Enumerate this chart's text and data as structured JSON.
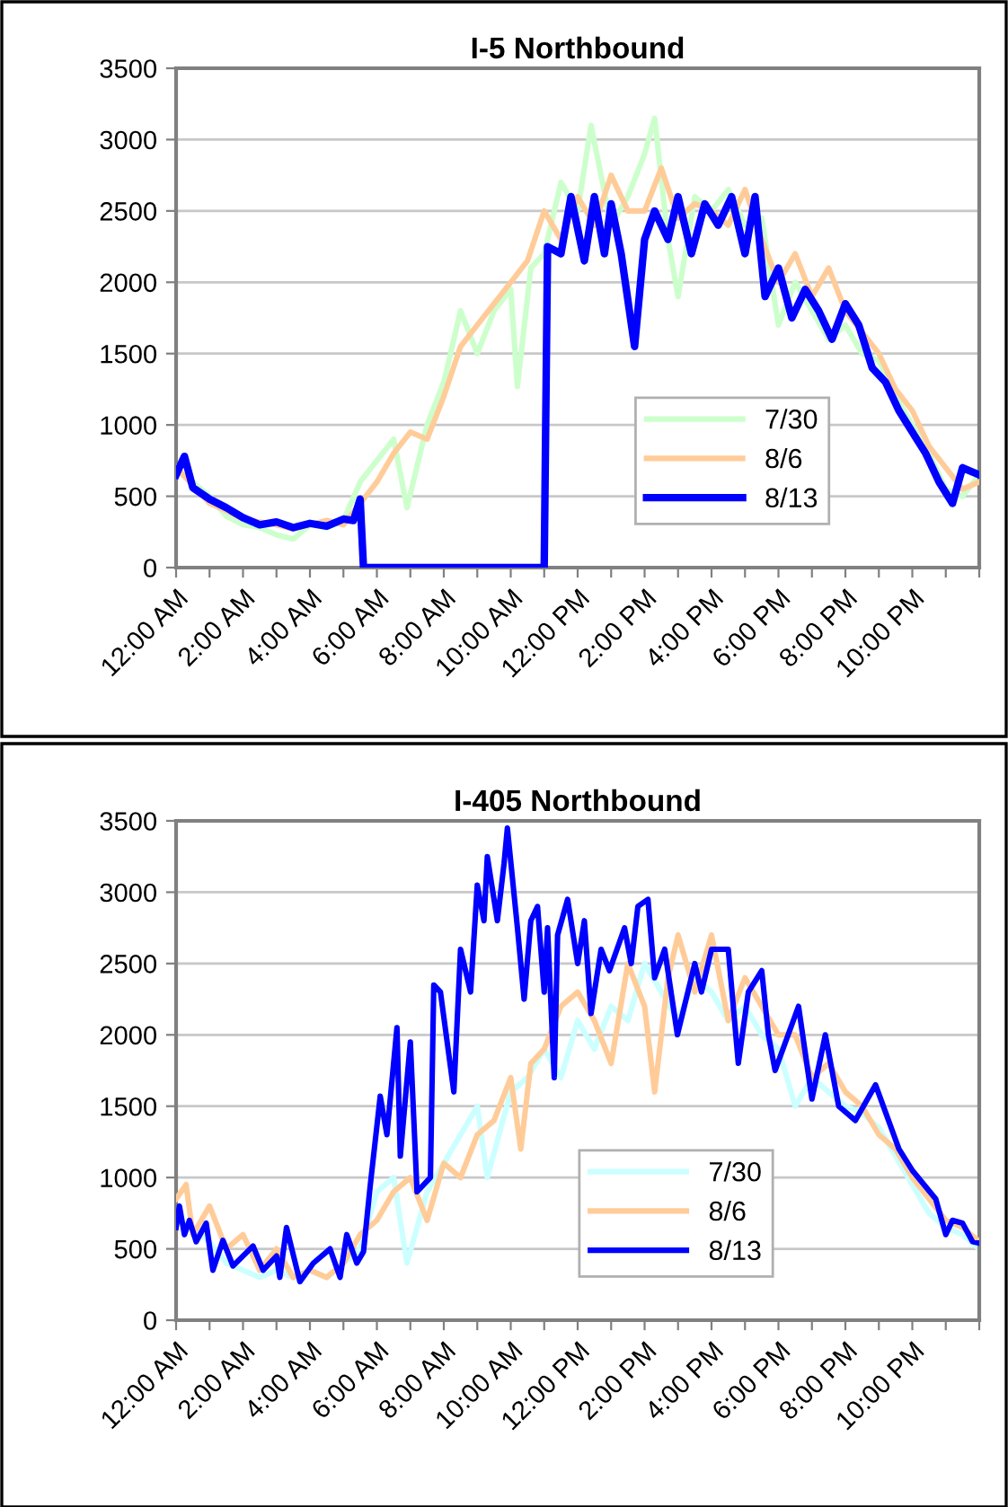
{
  "chart_data": [
    {
      "type": "line",
      "title": "I-5 Northbound",
      "xlim": [
        0,
        24
      ],
      "ylim": [
        0,
        3500
      ],
      "yticks": [
        0,
        500,
        1000,
        1500,
        2000,
        2500,
        3000,
        3500
      ],
      "xticks": [
        {
          "value": 0,
          "label": "12:00 AM"
        },
        {
          "value": 1,
          "label": null
        },
        {
          "value": 2,
          "label": "2:00 AM"
        },
        {
          "value": 3,
          "label": null
        },
        {
          "value": 4,
          "label": "4:00 AM"
        },
        {
          "value": 5,
          "label": null
        },
        {
          "value": 6,
          "label": "6:00 AM"
        },
        {
          "value": 7,
          "label": null
        },
        {
          "value": 8,
          "label": "8:00 AM"
        },
        {
          "value": 9,
          "label": null
        },
        {
          "value": 10,
          "label": "10:00 AM"
        },
        {
          "value": 11,
          "label": null
        },
        {
          "value": 12,
          "label": "12:00 PM"
        },
        {
          "value": 13,
          "label": null
        },
        {
          "value": 14,
          "label": "2:00 PM"
        },
        {
          "value": 15,
          "label": null
        },
        {
          "value": 16,
          "label": "4:00 PM"
        },
        {
          "value": 17,
          "label": null
        },
        {
          "value": 18,
          "label": "6:00 PM"
        },
        {
          "value": 19,
          "label": null
        },
        {
          "value": 20,
          "label": "8:00 PM"
        },
        {
          "value": 21,
          "label": null
        },
        {
          "value": 22,
          "label": "10:00 PM"
        },
        {
          "value": 23,
          "label": null
        },
        {
          "value": 24,
          "label": null
        }
      ],
      "grid": "y",
      "legend": "lower right",
      "marker": "none",
      "line_style": "solid",
      "series": [
        {
          "name": "7/30",
          "color": "#ccffcc",
          "x": [
            0,
            0.5,
            1,
            1.5,
            2,
            2.5,
            3,
            3.5,
            4,
            4.5,
            5,
            5.5,
            6,
            6.5,
            6.9,
            7.5,
            8,
            8.5,
            9,
            9.5,
            10,
            10.2,
            10.6,
            11,
            11.5,
            12,
            12.4,
            13,
            13.5,
            14,
            14.3,
            14.7,
            15,
            15.5,
            16,
            16.5,
            17,
            17.5,
            18,
            18.5,
            19,
            19.5,
            20,
            20.5,
            21,
            21.5,
            22,
            22.5,
            23,
            23.5,
            24
          ],
          "values": [
            680,
            600,
            500,
            360,
            300,
            280,
            230,
            200,
            300,
            280,
            330,
            600,
            750,
            900,
            420,
            1000,
            1300,
            1800,
            1500,
            1800,
            1950,
            1270,
            2100,
            2200,
            2700,
            2500,
            3100,
            2400,
            2600,
            2900,
            3150,
            2300,
            1900,
            2600,
            2500,
            2650,
            2400,
            2450,
            1700,
            2000,
            1800,
            1600,
            1700,
            1500,
            1450,
            1200,
            1000,
            800,
            550,
            500,
            650
          ]
        },
        {
          "name": "8/6",
          "color": "#ffcc99",
          "x": [
            0,
            0.5,
            1,
            1.5,
            2,
            2.5,
            3,
            3.5,
            4,
            4.5,
            5,
            5.5,
            6,
            6.5,
            7,
            7.5,
            8,
            8.5,
            9,
            9.5,
            10,
            10.5,
            11,
            11.5,
            12,
            12.5,
            13,
            13.5,
            14,
            14.5,
            15,
            15.5,
            16,
            16.5,
            17,
            17.5,
            18,
            18.5,
            19,
            19.5,
            20,
            20.5,
            21,
            21.5,
            22,
            22.5,
            23,
            23.5,
            24
          ],
          "values": [
            700,
            580,
            450,
            400,
            340,
            320,
            300,
            270,
            300,
            330,
            300,
            450,
            600,
            800,
            950,
            900,
            1200,
            1550,
            1700,
            1850,
            2000,
            2150,
            2500,
            2300,
            2600,
            2400,
            2750,
            2500,
            2500,
            2800,
            2450,
            2550,
            2500,
            2400,
            2650,
            2300,
            2000,
            2200,
            1900,
            2100,
            1800,
            1650,
            1500,
            1250,
            1100,
            850,
            700,
            550,
            600
          ]
        },
        {
          "name": "8/13",
          "color": "#0000ff",
          "x": [
            0,
            0.25,
            0.5,
            1,
            1.5,
            2,
            2.5,
            3,
            3.5,
            4,
            4.5,
            5,
            5.3,
            5.5,
            5.6,
            7,
            9,
            11,
            11.1,
            11.5,
            11.8,
            12.2,
            12.5,
            12.8,
            13,
            13.3,
            13.7,
            14,
            14.3,
            14.7,
            15,
            15.4,
            15.8,
            16.2,
            16.6,
            17,
            17.3,
            17.6,
            18,
            18.4,
            18.8,
            19.2,
            19.6,
            20,
            20.4,
            20.8,
            21.2,
            21.6,
            22,
            22.4,
            22.8,
            23.2,
            23.5,
            24
          ],
          "values": [
            650,
            780,
            560,
            480,
            420,
            350,
            300,
            320,
            280,
            310,
            290,
            340,
            330,
            480,
            0,
            0,
            0,
            0,
            2250,
            2200,
            2600,
            2150,
            2600,
            2200,
            2550,
            2200,
            1550,
            2300,
            2500,
            2300,
            2600,
            2200,
            2550,
            2400,
            2600,
            2200,
            2600,
            1900,
            2100,
            1750,
            1950,
            1800,
            1600,
            1850,
            1700,
            1400,
            1300,
            1100,
            950,
            800,
            600,
            450,
            700,
            650
          ]
        }
      ]
    },
    {
      "type": "line",
      "title": "I-405 Northbound",
      "xlim": [
        0,
        24
      ],
      "ylim": [
        0,
        3500
      ],
      "yticks": [
        0,
        500,
        1000,
        1500,
        2000,
        2500,
        3000,
        3500
      ],
      "xticks": [
        {
          "value": 0,
          "label": "12:00 AM"
        },
        {
          "value": 1,
          "label": null
        },
        {
          "value": 2,
          "label": "2:00 AM"
        },
        {
          "value": 3,
          "label": null
        },
        {
          "value": 4,
          "label": "4:00 AM"
        },
        {
          "value": 5,
          "label": null
        },
        {
          "value": 6,
          "label": "6:00 AM"
        },
        {
          "value": 7,
          "label": null
        },
        {
          "value": 8,
          "label": "8:00 AM"
        },
        {
          "value": 9,
          "label": null
        },
        {
          "value": 10,
          "label": "10:00 AM"
        },
        {
          "value": 11,
          "label": null
        },
        {
          "value": 12,
          "label": "12:00 PM"
        },
        {
          "value": 13,
          "label": null
        },
        {
          "value": 14,
          "label": "2:00 PM"
        },
        {
          "value": 15,
          "label": null
        },
        {
          "value": 16,
          "label": "4:00 PM"
        },
        {
          "value": 17,
          "label": null
        },
        {
          "value": 18,
          "label": "6:00 PM"
        },
        {
          "value": 19,
          "label": null
        },
        {
          "value": 20,
          "label": "8:00 PM"
        },
        {
          "value": 21,
          "label": null
        },
        {
          "value": 22,
          "label": "10:00 PM"
        },
        {
          "value": 23,
          "label": null
        },
        {
          "value": 24,
          "label": null
        }
      ],
      "grid": "y",
      "legend": "lower right",
      "marker": "none",
      "line_style": "solid",
      "series": [
        {
          "name": "7/30",
          "color": "#ccffff",
          "x": [
            0,
            0.5,
            1,
            1.5,
            2,
            2.5,
            3,
            3.5,
            4,
            4.5,
            5,
            5.5,
            6,
            6.5,
            6.9,
            7.5,
            8,
            8.5,
            9,
            9.3,
            10,
            10.5,
            11,
            11.5,
            12,
            12.5,
            13,
            13.5,
            14,
            14.5,
            15,
            15.5,
            16,
            16.5,
            17,
            17.5,
            18,
            18.5,
            19,
            19.5,
            20,
            20.5,
            21,
            21.5,
            22,
            22.5,
            23,
            23.5,
            24
          ],
          "values": [
            700,
            650,
            550,
            400,
            350,
            300,
            350,
            300,
            350,
            300,
            400,
            500,
            900,
            1000,
            400,
            900,
            1100,
            1300,
            1500,
            1000,
            1600,
            1700,
            1900,
            1700,
            2100,
            1900,
            2200,
            2100,
            2500,
            2300,
            2100,
            2400,
            2300,
            2100,
            2200,
            2000,
            1900,
            1500,
            1700,
            1600,
            1500,
            1450,
            1350,
            1150,
            950,
            750,
            650,
            600,
            500
          ]
        },
        {
          "name": "8/6",
          "color": "#ffcc99",
          "x": [
            0,
            0.3,
            0.5,
            1,
            1.5,
            2,
            2.5,
            3,
            3.5,
            4,
            4.5,
            5,
            5.5,
            6,
            6.5,
            7,
            7.5,
            8,
            8.5,
            9,
            9.5,
            10,
            10.3,
            10.6,
            11,
            11.5,
            12,
            12.5,
            13,
            13.5,
            14,
            14.3,
            14.7,
            15,
            15.5,
            16,
            16.5,
            17,
            17.5,
            18,
            18.5,
            19,
            19.5,
            20,
            20.5,
            21,
            21.5,
            22,
            22.5,
            23,
            23.5,
            24
          ],
          "values": [
            850,
            950,
            600,
            800,
            500,
            600,
            350,
            500,
            300,
            350,
            300,
            400,
            600,
            700,
            900,
            1000,
            700,
            1100,
            1000,
            1300,
            1400,
            1700,
            1200,
            1800,
            1900,
            2200,
            2300,
            2100,
            1800,
            2500,
            2200,
            1600,
            2400,
            2700,
            2300,
            2700,
            2100,
            2400,
            2200,
            2000,
            2000,
            1700,
            1800,
            1600,
            1500,
            1300,
            1200,
            1000,
            850,
            700,
            650,
            550
          ]
        },
        {
          "name": "8/13",
          "color": "#0000ff",
          "x": [
            0,
            0.1,
            0.25,
            0.4,
            0.6,
            0.9,
            1.1,
            1.4,
            1.7,
            2.3,
            2.6,
            3.0,
            3.1,
            3.3,
            3.7,
            4.1,
            4.6,
            4.9,
            5.1,
            5.4,
            5.6,
            5.8,
            6.1,
            6.3,
            6.6,
            6.7,
            7.0,
            7.2,
            7.6,
            7.7,
            7.9,
            8.3,
            8.5,
            8.8,
            9.0,
            9.2,
            9.3,
            9.6,
            9.8,
            9.9,
            10.2,
            10.4,
            10.6,
            10.8,
            11.0,
            11.1,
            11.3,
            11.4,
            11.7,
            12.0,
            12.2,
            12.4,
            12.7,
            12.95,
            13.4,
            13.6,
            13.8,
            14.1,
            14.3,
            14.6,
            14.98,
            15.5,
            15.7,
            16.0,
            16.5,
            16.8,
            17.1,
            17.5,
            17.7,
            17.9,
            18.6,
            19.0,
            19.4,
            19.8,
            20.3,
            20.9,
            21.6,
            22.0,
            22.7,
            23.0,
            23.2,
            23.5,
            23.8,
            24
          ],
          "values": [
            650,
            800,
            600,
            700,
            550,
            680,
            350,
            560,
            380,
            520,
            350,
            450,
            300,
            650,
            270,
            400,
            500,
            300,
            600,
            400,
            480,
            940,
            1570,
            1300,
            2050,
            1150,
            1950,
            900,
            1000,
            2350,
            2300,
            1600,
            2600,
            2300,
            3050,
            2800,
            3250,
            2800,
            3200,
            3450,
            2750,
            2250,
            2800,
            2900,
            2300,
            2750,
            1700,
            2700,
            2950,
            2500,
            2800,
            2150,
            2600,
            2450,
            2750,
            2500,
            2900,
            2950,
            2400,
            2600,
            2000,
            2500,
            2300,
            2600,
            2600,
            1800,
            2300,
            2450,
            2000,
            1750,
            2200,
            1550,
            2000,
            1500,
            1400,
            1650,
            1200,
            1050,
            850,
            600,
            700,
            680,
            550,
            540
          ]
        }
      ]
    }
  ]
}
